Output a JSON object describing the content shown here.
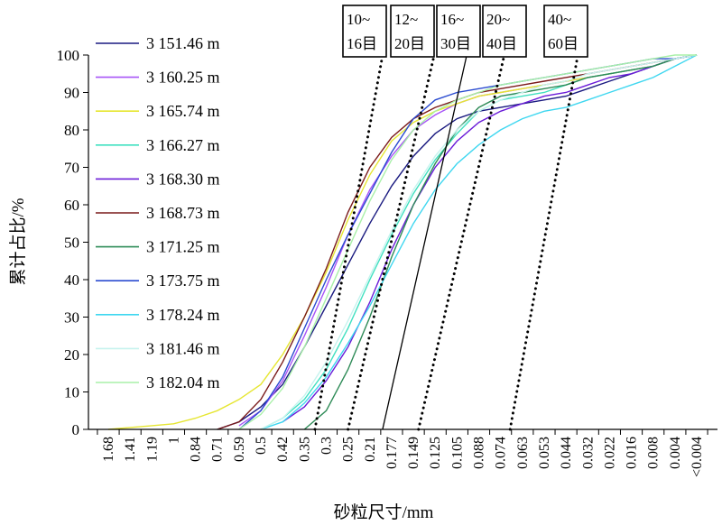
{
  "chart_data": {
    "type": "line",
    "ylabel": "累计占比/%",
    "xlabel": "砂粒尺寸/mm",
    "ylim": [
      0,
      100
    ],
    "y_ticks": [
      "0",
      "10",
      "20",
      "30",
      "40",
      "50",
      "60",
      "70",
      "80",
      "90",
      "100"
    ],
    "categories": [
      "1.68",
      "1.41",
      "1.19",
      "1",
      "0.84",
      "0.71",
      "0.59",
      "0.5",
      "0.42",
      "0.35",
      "0.3",
      "0.25",
      "0.21",
      "0.177",
      "0.149",
      "0.125",
      "0.105",
      "0.088",
      "0.074",
      "0.063",
      "0.053",
      "0.044",
      "0.032",
      "0.022",
      "0.016",
      "0.008",
      "0.004",
      "<0.004"
    ],
    "legend_position": "top-left",
    "series": [
      {
        "name": "3 151.46 m",
        "color": "#1a1a80",
        "values": [
          null,
          null,
          null,
          null,
          null,
          0,
          2,
          6,
          12,
          22,
          33,
          44,
          55,
          65,
          73,
          79,
          83,
          85,
          86,
          87,
          88,
          89,
          91,
          93,
          95,
          97,
          99,
          100
        ]
      },
      {
        "name": "3 160.25 m",
        "color": "#a855f7",
        "values": [
          null,
          null,
          null,
          null,
          null,
          null,
          1,
          5,
          13,
          25,
          38,
          52,
          64,
          73,
          80,
          84,
          87,
          89,
          90,
          91,
          92,
          93,
          94,
          95,
          96,
          97,
          99,
          100
        ]
      },
      {
        "name": "3 165.74 m",
        "color": "#e6e632",
        "values": [
          0,
          0.5,
          1,
          1.5,
          3,
          5,
          8,
          12,
          20,
          30,
          42,
          56,
          68,
          77,
          82,
          85,
          87,
          89,
          90,
          91,
          92,
          93,
          94,
          95,
          96,
          97,
          99,
          100
        ]
      },
      {
        "name": "3 166.27 m",
        "color": "#40e0c0",
        "values": [
          null,
          null,
          null,
          null,
          null,
          null,
          null,
          0,
          3,
          8,
          16,
          27,
          40,
          52,
          63,
          72,
          79,
          85,
          88,
          89,
          90,
          92,
          94,
          95,
          96,
          97,
          99,
          100
        ]
      },
      {
        "name": "3 168.30 m",
        "color": "#6a1bd8",
        "values": [
          null,
          null,
          null,
          null,
          null,
          null,
          null,
          null,
          2,
          6,
          13,
          22,
          34,
          48,
          60,
          70,
          77,
          82,
          85,
          87,
          89,
          90,
          92,
          94,
          95,
          97,
          99,
          100
        ]
      },
      {
        "name": "3 168.73 m",
        "color": "#7a1a1a",
        "values": [
          null,
          null,
          null,
          null,
          null,
          0,
          2,
          8,
          18,
          30,
          43,
          58,
          70,
          78,
          83,
          86,
          88,
          90,
          91,
          92,
          93,
          94,
          95,
          96,
          97,
          98,
          99,
          100
        ]
      },
      {
        "name": "3 171.25 m",
        "color": "#2e8b57",
        "values": [
          null,
          null,
          null,
          null,
          null,
          null,
          null,
          null,
          null,
          0,
          5,
          16,
          30,
          46,
          60,
          71,
          80,
          86,
          89,
          90,
          91,
          92,
          94,
          95,
          96,
          97,
          99,
          100
        ]
      },
      {
        "name": "3 173.75 m",
        "color": "#2a4bd0",
        "values": [
          null,
          null,
          null,
          null,
          null,
          null,
          0,
          5,
          14,
          27,
          40,
          52,
          63,
          74,
          83,
          88,
          90,
          91,
          92,
          93,
          94,
          95,
          96,
          97,
          98,
          99,
          99,
          100
        ]
      },
      {
        "name": "3 178.24 m",
        "color": "#3fd7f0",
        "values": [
          null,
          null,
          null,
          null,
          null,
          null,
          null,
          0,
          2,
          7,
          14,
          23,
          33,
          44,
          55,
          64,
          71,
          76,
          80,
          83,
          85,
          86,
          88,
          90,
          92,
          94,
          97,
          100
        ]
      },
      {
        "name": "3 181.46 m",
        "color": "#c6f3ee",
        "values": [
          null,
          null,
          null,
          null,
          null,
          null,
          null,
          0,
          3,
          9,
          18,
          29,
          41,
          53,
          64,
          73,
          80,
          85,
          88,
          90,
          92,
          93,
          95,
          96,
          97,
          98,
          99,
          100
        ]
      },
      {
        "name": "3 182.04 m",
        "color": "#a8f0a8",
        "values": [
          null,
          null,
          null,
          null,
          null,
          null,
          0,
          4,
          11,
          22,
          35,
          48,
          61,
          72,
          80,
          85,
          88,
          90,
          92,
          93,
          94,
          95,
          96,
          97,
          98,
          99,
          100,
          100
        ]
      }
    ],
    "mesh_lines": [
      {
        "line1": "10~",
        "line2": "16目",
        "style": "dotted",
        "bottom_x": 0.325,
        "top_x": 0.19
      },
      {
        "line1": "12~",
        "line2": "20目",
        "style": "dotted",
        "bottom_x": 0.25,
        "top_x": 0.126
      },
      {
        "line1": "16~",
        "line2": "30目",
        "style": "solid",
        "bottom_x": 0.19,
        "top_x": 0.097
      },
      {
        "line1": "20~",
        "line2": "40目",
        "style": "dotted",
        "bottom_x": 0.143,
        "top_x": 0.072
      },
      {
        "line1": "40~",
        "line2": "60目",
        "style": "dotted",
        "bottom_x": 0.069,
        "top_x": 0.037
      }
    ]
  }
}
